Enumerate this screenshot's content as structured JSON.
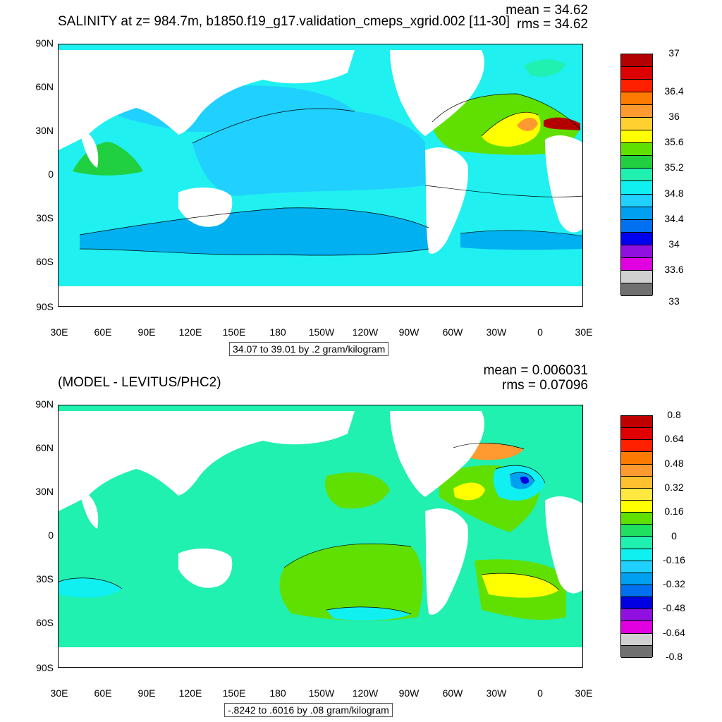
{
  "panels": [
    {
      "title": "SALINITY at z= 984.7m, b1850.f19_g17.validation_cmeps_xgrid.002 [11-30]",
      "mean": "mean = 34.62",
      "rms": "rms = 34.62",
      "range_note": "34.07 to 39.01 by .2 gram/kilogram",
      "lat_labels": [
        "90N",
        "60N",
        "30N",
        "0",
        "30S",
        "60S",
        "90S"
      ],
      "lon_labels": [
        "30E",
        "60E",
        "90E",
        "120E",
        "150E",
        "180",
        "150W",
        "120W",
        "90W",
        "60W",
        "30W",
        "0",
        "30E"
      ],
      "colorbar": {
        "colors": [
          "#b30000",
          "#dd0000",
          "#ff2000",
          "#ff7a00",
          "#ff9a30",
          "#ffd030",
          "#ffff00",
          "#60e000",
          "#20d040",
          "#20f0b0",
          "#10f0f0",
          "#20d0ff",
          "#00a0f0",
          "#0070f0",
          "#0000f0",
          "#9010e0",
          "#e000e0",
          "#d0d0d0",
          "#707070"
        ],
        "labels": [
          {
            "text": "37",
            "index": 0
          },
          {
            "text": "36.4",
            "index": 3
          },
          {
            "text": "36",
            "index": 5
          },
          {
            "text": "35.6",
            "index": 7
          },
          {
            "text": "35.2",
            "index": 9
          },
          {
            "text": "34.8",
            "index": 11
          },
          {
            "text": "34.4",
            "index": 13
          },
          {
            "text": "34",
            "index": 15
          },
          {
            "text": "33.6",
            "index": 17
          },
          {
            "text": "33",
            "index": 19.5
          }
        ]
      },
      "field_colors": {
        "ocean_base": "#20f0f0",
        "pacific_core": "#20d0ff",
        "southern_band": "#00b0f0",
        "atlantic_high": "#60e000",
        "atlantic_peak": "#ffff00",
        "atlantic_max": "#ff9a30",
        "med_outflow": "#b30000",
        "indian_band": "#20d040",
        "arctic": "#20f0b0"
      }
    },
    {
      "title": "(MODEL - LEVITUS/PHC2)",
      "mean": "mean = 0.006031",
      "rms": "rms = 0.07096",
      "range_note": "-.8242 to .6016 by .08 gram/kilogram",
      "lat_labels": [
        "90N",
        "60N",
        "30N",
        "0",
        "30S",
        "60S",
        "90S"
      ],
      "lon_labels": [
        "30E",
        "60E",
        "90E",
        "120E",
        "150E",
        "180",
        "150W",
        "120W",
        "90W",
        "60W",
        "30W",
        "0",
        "30E"
      ],
      "colorbar": {
        "colors": [
          "#c00000",
          "#e00000",
          "#ff2000",
          "#ff7a00",
          "#ff9a30",
          "#ffc030",
          "#ffe840",
          "#ffff00",
          "#60e000",
          "#20e060",
          "#20f0b0",
          "#10f0f0",
          "#20d0ff",
          "#00a0f0",
          "#0070f0",
          "#0000e0",
          "#9010e0",
          "#e000e0",
          "#d0d0d0",
          "#707070"
        ],
        "labels": [
          {
            "text": "0.8",
            "index": 0
          },
          {
            "text": "0.64",
            "index": 2
          },
          {
            "text": "0.48",
            "index": 4
          },
          {
            "text": "0.32",
            "index": 6
          },
          {
            "text": "0.16",
            "index": 8
          },
          {
            "text": "0",
            "index": 10
          },
          {
            "text": "-0.16",
            "index": 12
          },
          {
            "text": "-0.32",
            "index": 14
          },
          {
            "text": "-0.48",
            "index": 16
          },
          {
            "text": "-0.64",
            "index": 18
          },
          {
            "text": "-0.8",
            "index": 20
          }
        ]
      },
      "field_colors": {
        "ocean_base": "#20f0b0",
        "positive": "#60e000",
        "positive_high": "#ffff00",
        "positive_max": "#ff9a30",
        "negative": "#10f0f0",
        "negative_more": "#00a0f0",
        "negative_max": "#0000e0"
      }
    }
  ]
}
